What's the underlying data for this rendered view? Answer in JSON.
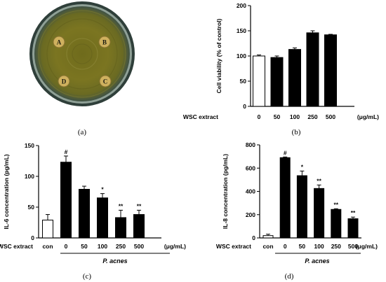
{
  "panels": {
    "a": {
      "label": "(a)",
      "wells": [
        "A",
        "B",
        "C",
        "D"
      ]
    },
    "b": {
      "label": "(b)",
      "group_label": "WSC extract",
      "unit": "(μg/mL)"
    },
    "c": {
      "label": "(c)",
      "group_label": "WSC extract",
      "unit": "(μg/mL)",
      "treatment_label": "P. acnes"
    },
    "d": {
      "label": "(d)",
      "group_label": "WSC extract",
      "unit": "(μg/mL)",
      "treatment_label": "P. acnes"
    }
  },
  "colors": {
    "bar_dark": "#000000",
    "bar_light": "#ffffff",
    "plate_rim": "#4a5a48",
    "plate_agar": "#74701e",
    "well": "#c9aa58"
  },
  "chart_data": [
    {
      "id": "b",
      "type": "bar",
      "ylabel": "Cell viability (% of control)",
      "ylim": [
        0,
        200
      ],
      "yticks": [
        "0",
        "50",
        "100",
        "150",
        "200"
      ],
      "categories": [
        "0",
        "50",
        "100",
        "250",
        "500"
      ],
      "values": [
        100,
        97,
        113,
        146,
        142
      ],
      "errors": [
        2,
        3,
        3,
        4,
        1
      ],
      "fills": [
        "white",
        "black",
        "black",
        "black",
        "black"
      ],
      "annotations": [
        "",
        "",
        "",
        "",
        ""
      ],
      "grid": false
    },
    {
      "id": "c",
      "type": "bar",
      "ylabel": "IL-6 concentration (pg/mL)",
      "ylim": [
        0,
        150
      ],
      "yticks": [
        "0",
        "50",
        "100",
        "150"
      ],
      "categories": [
        "con",
        "0",
        "50",
        "100",
        "250",
        "500"
      ],
      "values": [
        29,
        123,
        79,
        65,
        33,
        38
      ],
      "errors": [
        9,
        10,
        5,
        7,
        12,
        7
      ],
      "fills": [
        "white",
        "black",
        "black",
        "black",
        "black",
        "black"
      ],
      "annotations": [
        "",
        "#",
        "",
        "*",
        "**",
        "**"
      ],
      "grid": false
    },
    {
      "id": "d",
      "type": "bar",
      "ylabel": "IL-8 concentration (pg/mL)",
      "ylim": [
        0,
        800
      ],
      "yticks": [
        "0",
        "200",
        "400",
        "600",
        "800"
      ],
      "categories": [
        "con",
        "0",
        "50",
        "100",
        "250",
        "500"
      ],
      "values": [
        20,
        690,
        535,
        425,
        245,
        165
      ],
      "errors": [
        12,
        6,
        40,
        30,
        6,
        14
      ],
      "fills": [
        "white",
        "black",
        "black",
        "black",
        "black",
        "black"
      ],
      "annotations": [
        "",
        "#",
        "*",
        "**",
        "**",
        "**"
      ],
      "grid": false
    }
  ]
}
